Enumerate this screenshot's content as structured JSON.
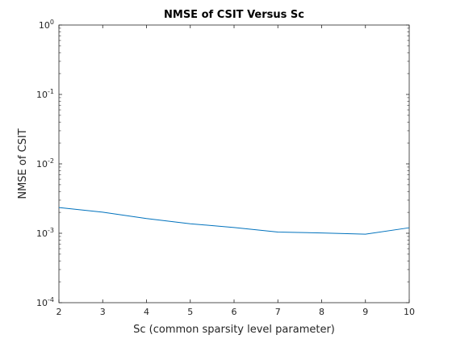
{
  "chart_data": {
    "type": "line",
    "title": "NMSE of CSIT Versus Sc",
    "xlabel": "Sc (common sparsity level parameter)",
    "ylabel": "NMSE of CSIT",
    "xlim": [
      2,
      10
    ],
    "ylim": [
      0.0001,
      1
    ],
    "yscale": "log",
    "x_ticks": [
      "2",
      "3",
      "4",
      "5",
      "6",
      "7",
      "8",
      "9",
      "10"
    ],
    "y_ticks": [
      {
        "base": "10",
        "exp": "0"
      },
      {
        "base": "10",
        "exp": "-1"
      },
      {
        "base": "10",
        "exp": "-2"
      },
      {
        "base": "10",
        "exp": "-3"
      },
      {
        "base": "10",
        "exp": "-4"
      }
    ],
    "grid": false,
    "series": [
      {
        "color": "#0072bd",
        "x": [
          2,
          3,
          4,
          5,
          6,
          7,
          8,
          9,
          10
        ],
        "y": [
          0.00235,
          0.00201,
          0.00163,
          0.00137,
          0.00121,
          0.00104,
          0.00101,
          0.00097,
          0.0012
        ]
      }
    ]
  }
}
